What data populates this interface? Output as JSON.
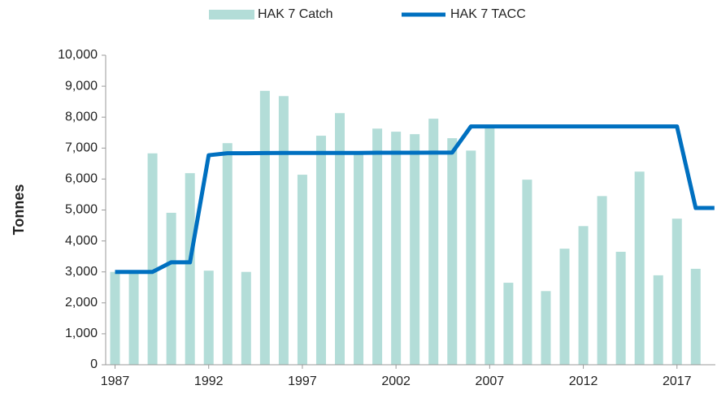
{
  "chart_data": {
    "type": "bar_line",
    "y_label": "Tonnes",
    "x": [
      1987,
      1988,
      1989,
      1990,
      1991,
      1992,
      1993,
      1994,
      1995,
      1996,
      1997,
      1998,
      1999,
      2000,
      2001,
      2002,
      2003,
      2004,
      2005,
      2006,
      2007,
      2008,
      2009,
      2010,
      2011,
      2012,
      2013,
      2014,
      2015,
      2016,
      2017,
      2018,
      2019
    ],
    "xlim": [
      1986.5,
      2019.05
    ],
    "xticks": [
      1987,
      1992,
      1997,
      2002,
      2007,
      2012,
      2017
    ],
    "ylim": [
      0,
      10000
    ],
    "yticks": [
      0,
      {
        "value": 1000,
        "label": "1,000"
      },
      {
        "value": 2000,
        "label": "2,000"
      },
      {
        "value": 3000,
        "label": "3,000"
      },
      {
        "value": 4000,
        "label": "4,000"
      },
      {
        "value": 5000,
        "label": "5,000"
      },
      {
        "value": 6000,
        "label": "6,000"
      },
      {
        "value": 7000,
        "label": "7,000"
      },
      {
        "value": 8000,
        "label": "8,000"
      },
      {
        "value": 9000,
        "label": "9,000"
      },
      {
        "value": 10000,
        "label": "10,000"
      }
    ],
    "series": [
      {
        "name": "HAK 7 Catch",
        "kind": "bar",
        "color": "#b3ddd8",
        "values": [
          3000,
          2950,
          6830,
          4910,
          6190,
          3040,
          7160,
          3000,
          8850,
          8680,
          6140,
          7400,
          8130,
          6870,
          7630,
          7530,
          7450,
          7950,
          7320,
          6920,
          7640,
          2650,
          5980,
          2380,
          3750,
          4480,
          5450,
          3650,
          6240,
          2890,
          4720,
          3100,
          null
        ]
      },
      {
        "name": "HAK 7 TACC",
        "kind": "line",
        "color": "#0070c0",
        "values": [
          3000,
          3000,
          3000,
          3310,
          3310,
          6770,
          6835,
          6835,
          6840,
          6845,
          6845,
          6845,
          6845,
          6845,
          6850,
          6850,
          6850,
          6855,
          6855,
          7700,
          7700,
          7700,
          7700,
          7700,
          7700,
          7700,
          7700,
          7700,
          7700,
          7700,
          7700,
          5064,
          5064
        ]
      }
    ]
  }
}
